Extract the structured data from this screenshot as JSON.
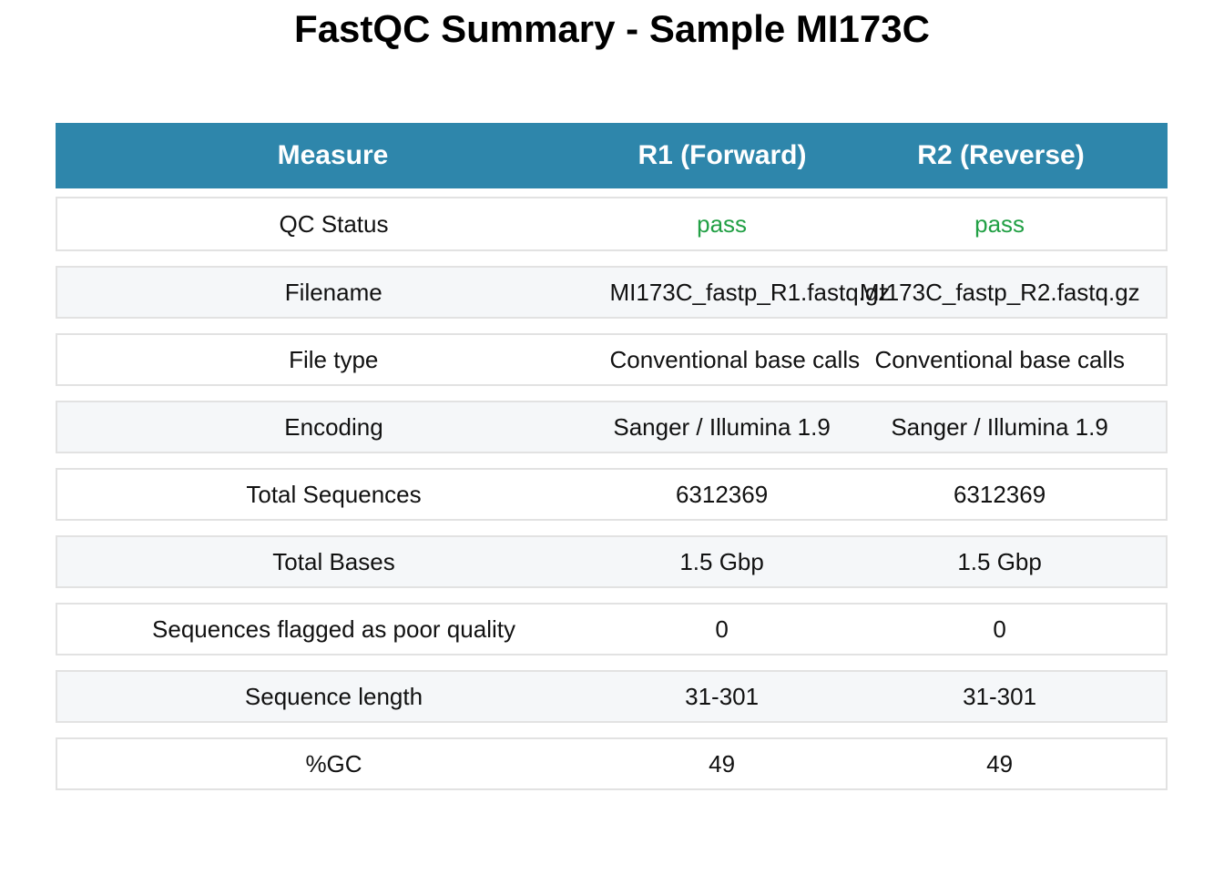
{
  "title": "FastQC Summary - Sample MI173C",
  "columns": {
    "measure": "Measure",
    "r1": "R1 (Forward)",
    "r2": "R2 (Reverse)"
  },
  "colors": {
    "header_bg": "#2e86ab",
    "pass": "#22a045",
    "alt_row": "#f5f7f9"
  },
  "rows": [
    {
      "measure": "QC Status",
      "r1": "pass",
      "r2": "pass"
    },
    {
      "measure": "Filename",
      "r1": "MI173C_fastp_R1.fastq.gz",
      "r2": "MI173C_fastp_R2.fastq.gz"
    },
    {
      "measure": "File type",
      "r1": "Conventional base calls",
      "r2": "Conventional base calls"
    },
    {
      "measure": "Encoding",
      "r1": "Sanger / Illumina 1.9",
      "r2": "Sanger / Illumina 1.9"
    },
    {
      "measure": "Total Sequences",
      "r1": "6312369",
      "r2": "6312369"
    },
    {
      "measure": "Total Bases",
      "r1": "1.5 Gbp",
      "r2": "1.5 Gbp"
    },
    {
      "measure": "Sequences flagged as poor quality",
      "r1": "0",
      "r2": "0"
    },
    {
      "measure": "Sequence length",
      "r1": "31-301",
      "r2": "31-301"
    },
    {
      "measure": "%GC",
      "r1": "49",
      "r2": "49"
    }
  ]
}
